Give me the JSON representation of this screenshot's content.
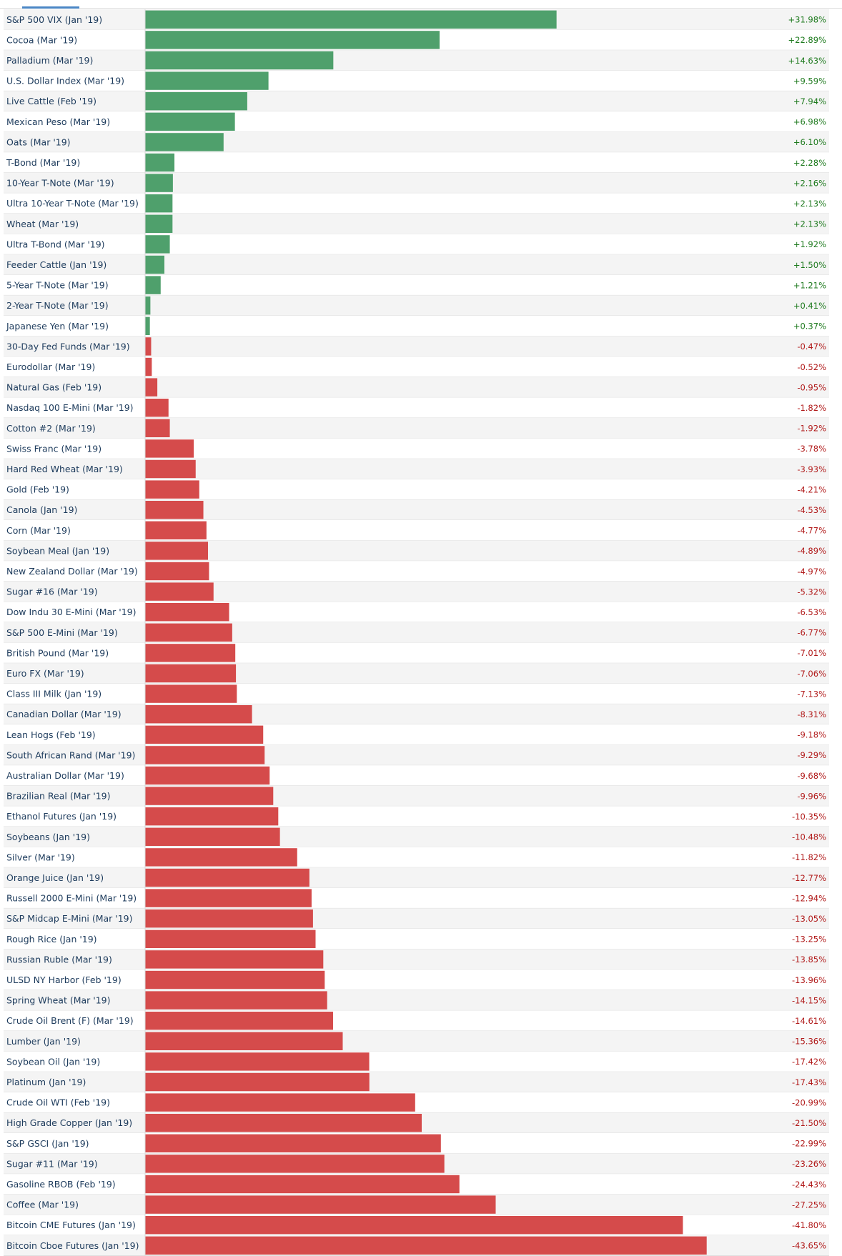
{
  "chart_data": {
    "type": "bar",
    "orientation": "horizontal",
    "title": "",
    "xlabel": "",
    "ylabel": "",
    "positive_color": "#4fa06c",
    "negative_color": "#d54b4b",
    "positive_text_color": "#1e7a1e",
    "negative_text_color": "#b11a1a",
    "categories": [
      "S&P 500 VIX (Jan '19)",
      "Cocoa (Mar '19)",
      "Palladium (Mar '19)",
      "U.S. Dollar Index (Mar '19)",
      "Live Cattle (Feb '19)",
      "Mexican Peso (Mar '19)",
      "Oats (Mar '19)",
      "T-Bond (Mar '19)",
      "10-Year T-Note (Mar '19)",
      "Ultra 10-Year T-Note (Mar '19)",
      "Wheat (Mar '19)",
      "Ultra T-Bond (Mar '19)",
      "Feeder Cattle (Jan '19)",
      "5-Year T-Note (Mar '19)",
      "2-Year T-Note (Mar '19)",
      "Japanese Yen (Mar '19)",
      "30-Day Fed Funds (Mar '19)",
      "Eurodollar (Mar '19)",
      "Natural Gas (Feb '19)",
      "Nasdaq 100 E-Mini (Mar '19)",
      "Cotton #2 (Mar '19)",
      "Swiss Franc (Mar '19)",
      "Hard Red Wheat (Mar '19)",
      "Gold (Feb '19)",
      "Canola (Jan '19)",
      "Corn (Mar '19)",
      "Soybean Meal (Jan '19)",
      "New Zealand Dollar (Mar '19)",
      "Sugar #16 (Mar '19)",
      "Dow Indu 30 E-Mini (Mar '19)",
      "S&P 500 E-Mini (Mar '19)",
      "British Pound (Mar '19)",
      "Euro FX (Mar '19)",
      "Class III Milk (Jan '19)",
      "Canadian Dollar (Mar '19)",
      "Lean Hogs (Feb '19)",
      "South African Rand (Mar '19)",
      "Australian Dollar (Mar '19)",
      "Brazilian Real (Mar '19)",
      "Ethanol Futures (Jan '19)",
      "Soybeans (Jan '19)",
      "Silver (Mar '19)",
      "Orange Juice (Jan '19)",
      "Russell 2000 E-Mini (Mar '19)",
      "S&P Midcap E-Mini (Mar '19)",
      "Rough Rice (Jan '19)",
      "Russian Ruble (Mar '19)",
      "ULSD NY Harbor (Feb '19)",
      "Spring Wheat (Mar '19)",
      "Crude Oil Brent (F) (Mar '19)",
      "Lumber (Jan '19)",
      "Soybean Oil (Jan '19)",
      "Platinum (Jan '19)",
      "Crude Oil WTI (Feb '19)",
      "High Grade Copper (Jan '19)",
      "S&P GSCI (Jan '19)",
      "Sugar #11 (Mar '19)",
      "Gasoline RBOB (Feb '19)",
      "Coffee (Mar '19)",
      "Bitcoin CME Futures (Jan '19)",
      "Bitcoin Cboe Futures (Jan '19)"
    ],
    "values": [
      31.98,
      22.89,
      14.63,
      9.59,
      7.94,
      6.98,
      6.1,
      2.28,
      2.16,
      2.13,
      2.13,
      1.92,
      1.5,
      1.21,
      0.41,
      0.37,
      -0.47,
      -0.52,
      -0.95,
      -1.82,
      -1.92,
      -3.78,
      -3.93,
      -4.21,
      -4.53,
      -4.77,
      -4.89,
      -4.97,
      -5.32,
      -6.53,
      -6.77,
      -7.01,
      -7.06,
      -7.13,
      -8.31,
      -9.18,
      -9.29,
      -9.68,
      -9.96,
      -10.35,
      -10.48,
      -11.82,
      -12.77,
      -12.94,
      -13.05,
      -13.25,
      -13.85,
      -13.96,
      -14.15,
      -14.61,
      -15.36,
      -17.42,
      -17.43,
      -20.99,
      -21.5,
      -22.99,
      -23.26,
      -24.43,
      -27.25,
      -41.8,
      -43.65
    ],
    "value_labels": [
      "+31.98%",
      "+22.89%",
      "+14.63%",
      "+9.59%",
      "+7.94%",
      "+6.98%",
      "+6.10%",
      "+2.28%",
      "+2.16%",
      "+2.13%",
      "+2.13%",
      "+1.92%",
      "+1.50%",
      "+1.21%",
      "+0.41%",
      "+0.37%",
      "-0.47%",
      "-0.52%",
      "-0.95%",
      "-1.82%",
      "-1.92%",
      "-3.78%",
      "-3.93%",
      "-4.21%",
      "-4.53%",
      "-4.77%",
      "-4.89%",
      "-4.97%",
      "-5.32%",
      "-6.53%",
      "-6.77%",
      "-7.01%",
      "-7.06%",
      "-7.13%",
      "-8.31%",
      "-9.18%",
      "-9.29%",
      "-9.68%",
      "-9.96%",
      "-10.35%",
      "-10.48%",
      "-11.82%",
      "-12.77%",
      "-12.94%",
      "-13.05%",
      "-13.25%",
      "-13.85%",
      "-13.96%",
      "-14.15%",
      "-14.61%",
      "-15.36%",
      "-17.42%",
      "-17.43%",
      "-20.99%",
      "-21.50%",
      "-22.99%",
      "-23.26%",
      "-24.43%",
      "-27.25%",
      "-41.80%",
      "-43.65%"
    ],
    "bar_magnitude_axis": "absolute value of percent change",
    "xlim": [
      0,
      55
    ]
  }
}
